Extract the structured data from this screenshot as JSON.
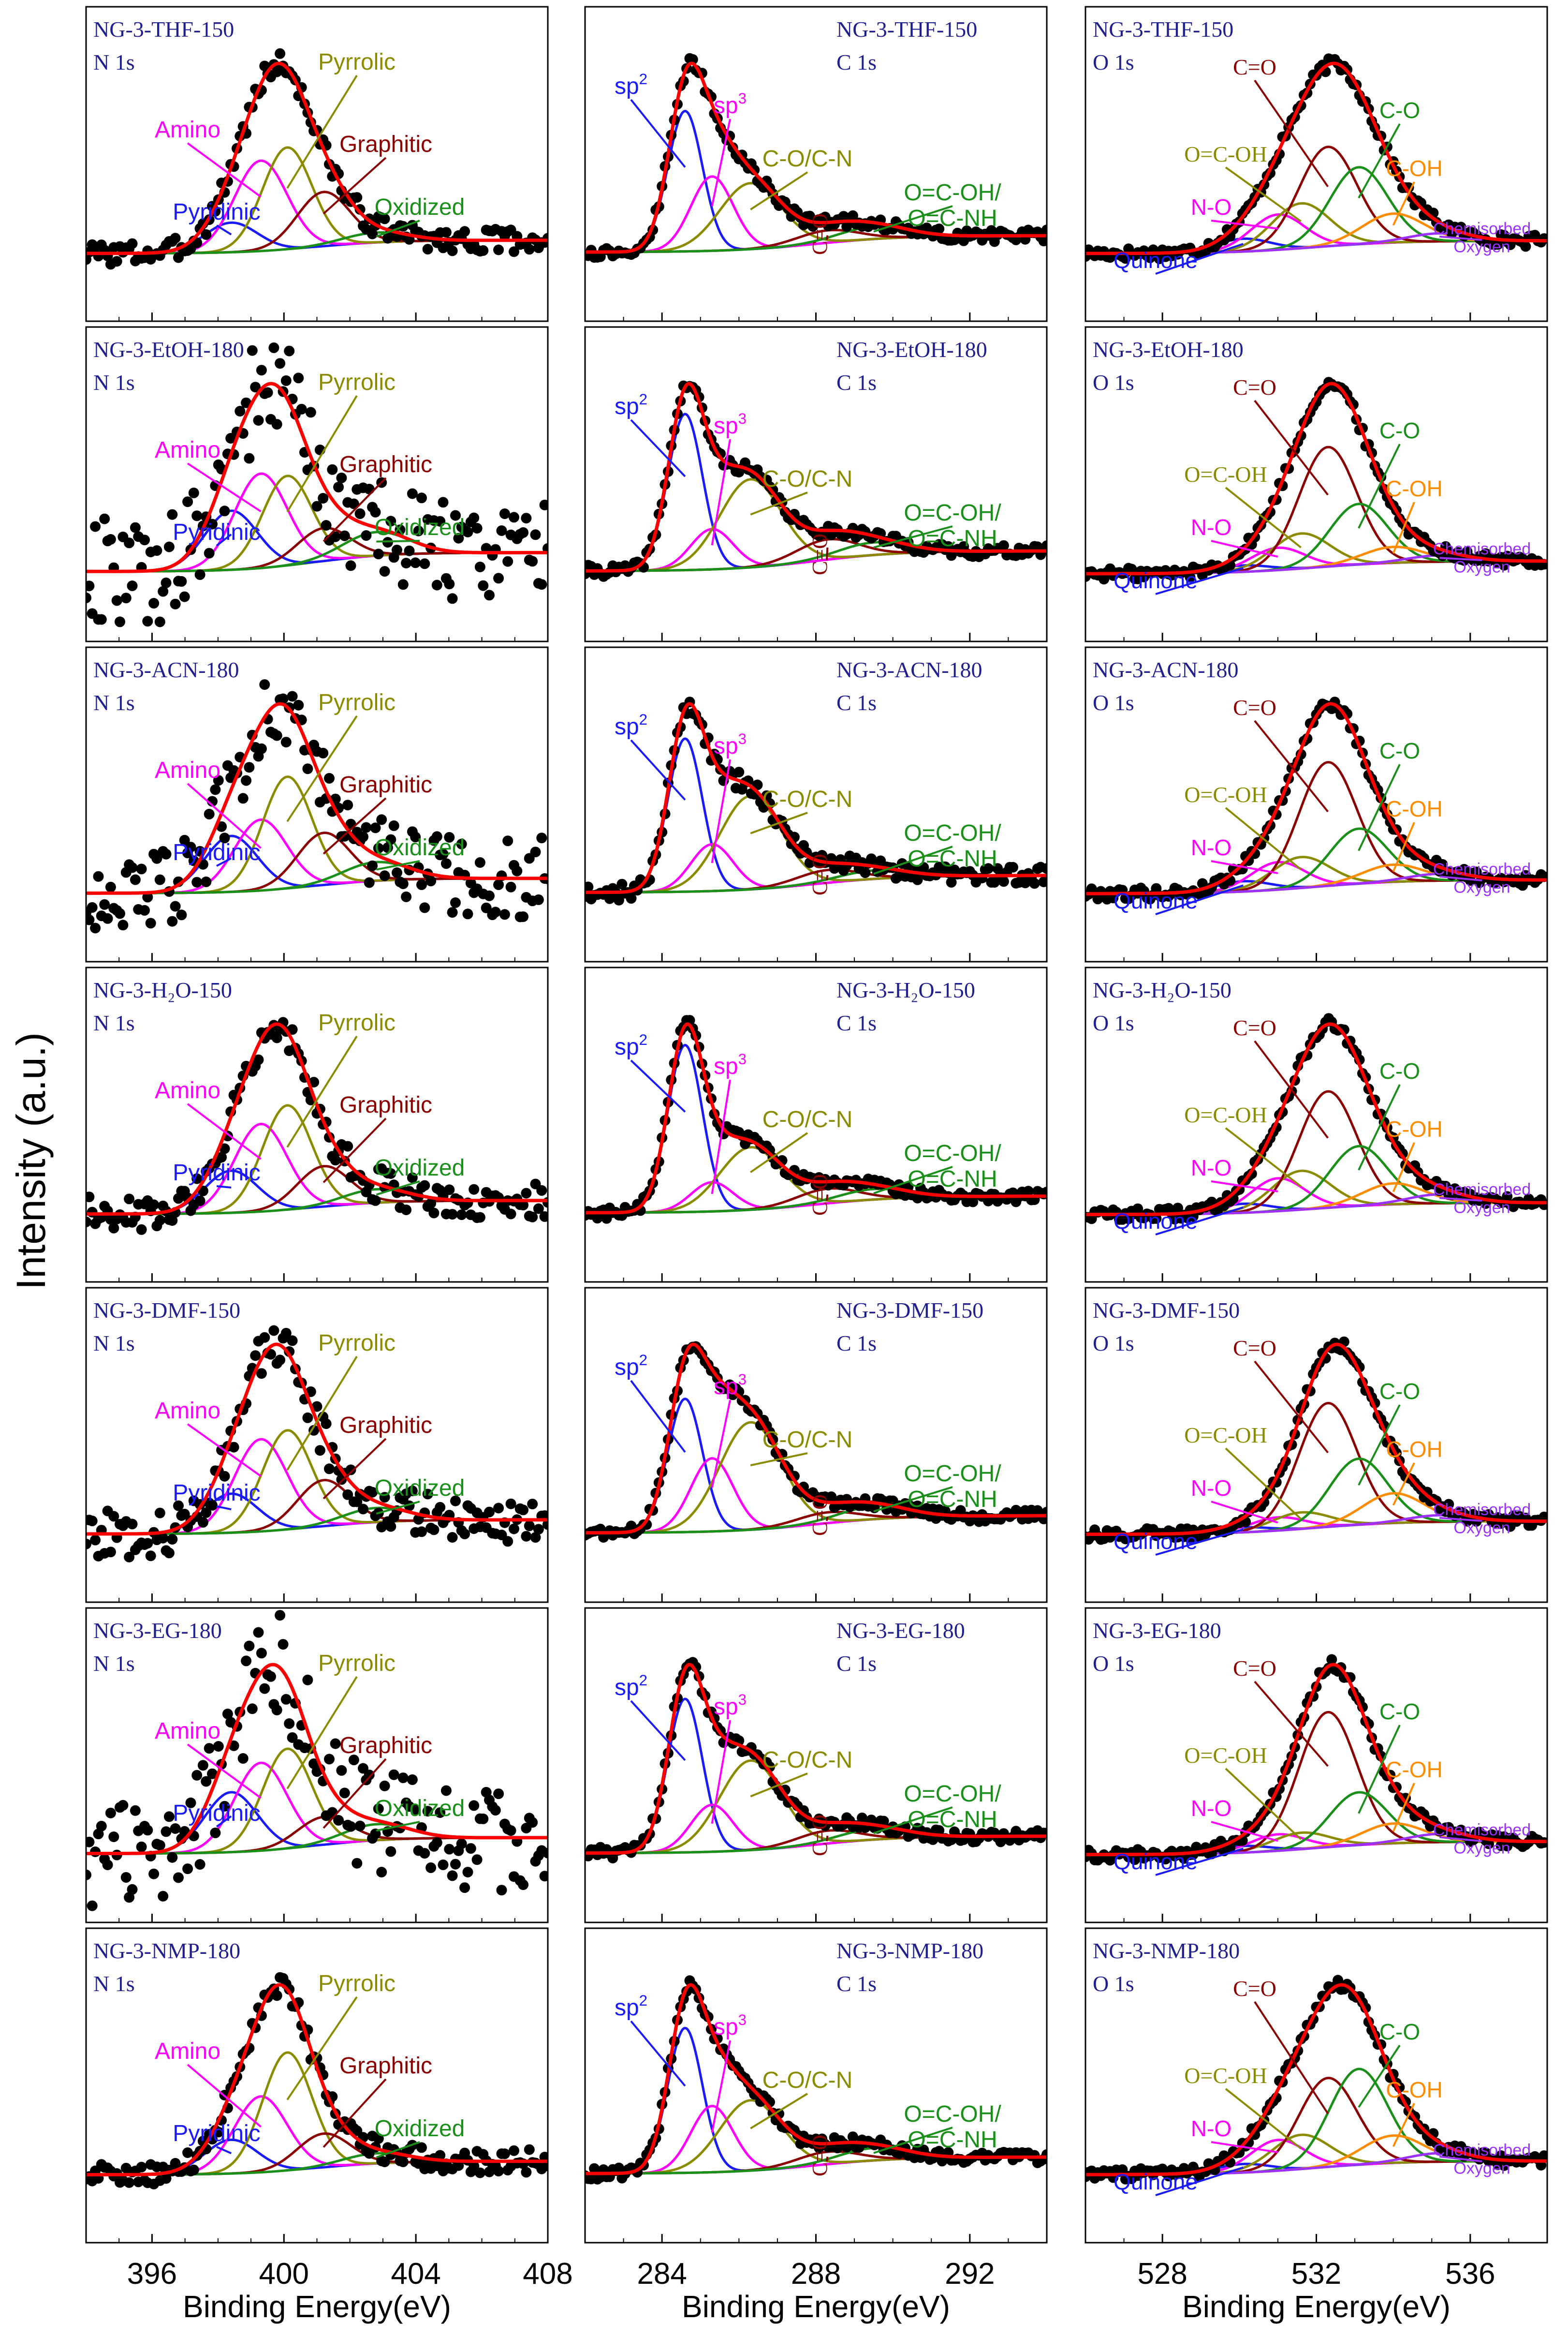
{
  "figure": {
    "ylabel": "Intensity (a.u.)",
    "xlabel": "Binding Energy(eV)"
  },
  "columns": [
    {
      "key": "N",
      "xrange": [
        394,
        408
      ],
      "ticks": [
        396,
        400,
        404,
        408
      ],
      "components": [
        {
          "name": "Pyridinic",
          "center": 398.4,
          "width": 0.8,
          "color": "#1a1aff",
          "label": "Pyridinic"
        },
        {
          "name": "Amino",
          "center": 399.3,
          "width": 0.8,
          "color": "#ff00ff",
          "label": "Amino"
        },
        {
          "name": "Pyrrolic",
          "center": 400.1,
          "width": 0.75,
          "color": "#8b8b00",
          "label": "Pyrrolic"
        },
        {
          "name": "Graphitic",
          "center": 401.2,
          "width": 0.8,
          "color": "#8b0000",
          "label": "Graphitic"
        },
        {
          "name": "Oxidized",
          "center": 402.8,
          "width": 1.0,
          "color": "#1a8f1a",
          "label": "Oxidized"
        }
      ]
    },
    {
      "key": "C",
      "xrange": [
        282,
        294
      ],
      "ticks": [
        284,
        288,
        292
      ],
      "components": [
        {
          "name": "sp2",
          "center": 284.6,
          "width": 0.45,
          "color": "#1a1aff",
          "label": "sp",
          "sup": "2"
        },
        {
          "name": "sp3",
          "center": 285.3,
          "width": 0.55,
          "color": "#ff00ff",
          "label": "sp",
          "sup": "3"
        },
        {
          "name": "C-O/C-N",
          "center": 286.3,
          "width": 0.8,
          "color": "#8b8b00",
          "label": "C-O/C-N"
        },
        {
          "name": "C=O",
          "center": 288.3,
          "width": 0.8,
          "color": "#8b0000",
          "label": "C=O"
        },
        {
          "name": "O=C-OH/O=C-NH",
          "center": 289.5,
          "width": 0.9,
          "color": "#1a8f1a",
          "label": "O=C-OH/",
          "label2": "O=C-NH"
        }
      ]
    },
    {
      "key": "O",
      "xrange": [
        526,
        538
      ],
      "ticks": [
        528,
        532,
        536
      ],
      "components": [
        {
          "name": "Quinone",
          "center": 530.1,
          "width": 0.7,
          "color": "#1a1aff",
          "label": "Quinone"
        },
        {
          "name": "N-O",
          "center": 531.0,
          "width": 0.7,
          "color": "#ff00ff",
          "label": "N-O"
        },
        {
          "name": "O=C-OH",
          "center": 531.6,
          "width": 0.75,
          "color": "#8b8b00",
          "label": "O=C-OH"
        },
        {
          "name": "C=O",
          "center": 532.3,
          "width": 0.75,
          "color": "#8b0000",
          "label": "C=O"
        },
        {
          "name": "C-O",
          "center": 533.1,
          "width": 0.75,
          "color": "#1a8f1a",
          "label": "C-O"
        },
        {
          "name": "C-OH",
          "center": 534.0,
          "width": 0.8,
          "color": "#ff8c00",
          "label": "C-OH"
        },
        {
          "name": "Chemisorbed Oxygen",
          "center": 535.2,
          "width": 0.8,
          "color": "#9b30ff",
          "label": "Chemisorbed",
          "label2": "Oxygen"
        }
      ]
    }
  ],
  "chart_data": [
    {
      "type": "line",
      "title": "NG-3-THF-150",
      "sample": "NG-3-THF-150",
      "xlabel": "Binding Energy(eV)",
      "ylabel": "Intensity (a.u.)",
      "spectra": [
        {
          "region": "N 1s",
          "xlim": [
            394,
            408
          ],
          "amplitudes": [
            0.18,
            0.55,
            0.62,
            0.33,
            0.06
          ],
          "noise": 0.02
        },
        {
          "region": "C 1s",
          "xlim": [
            282,
            294
          ],
          "amplitudes": [
            0.68,
            0.36,
            0.32,
            0.06,
            0.06
          ],
          "noise": 0.01
        },
        {
          "region": "O 1s",
          "xlim": [
            526,
            538
          ],
          "amplitudes": [
            0.08,
            0.22,
            0.28,
            0.62,
            0.48,
            0.18,
            0.05
          ],
          "noise": 0.01
        }
      ]
    },
    {
      "type": "line",
      "title": "NG-3-EtOH-180",
      "sample": "NG-3-EtOH-180",
      "xlabel": "Binding Energy(eV)",
      "ylabel": "Intensity (a.u.)",
      "spectra": [
        {
          "region": "N 1s",
          "xlim": [
            394,
            408
          ],
          "amplitudes": [
            0.25,
            0.4,
            0.38,
            0.14,
            0.1
          ],
          "noise": 0.09
        },
        {
          "region": "C 1s",
          "xlim": [
            282,
            294
          ],
          "amplitudes": [
            0.62,
            0.16,
            0.35,
            0.08,
            0.05
          ],
          "noise": 0.01
        },
        {
          "region": "O 1s",
          "xlim": [
            526,
            538
          ],
          "amplitudes": [
            0.04,
            0.14,
            0.22,
            0.75,
            0.38,
            0.1,
            0.04
          ],
          "noise": 0.01
        }
      ]
    },
    {
      "type": "line",
      "title": "NG-3-ACN-180",
      "sample": "NG-3-ACN-180",
      "xlabel": "Binding Energy(eV)",
      "ylabel": "Intensity (a.u.)",
      "spectra": [
        {
          "region": "N 1s",
          "xlim": [
            394,
            408
          ],
          "amplitudes": [
            0.3,
            0.38,
            0.6,
            0.28,
            0.1
          ],
          "noise": 0.07
        },
        {
          "region": "C 1s",
          "xlim": [
            282,
            294
          ],
          "amplitudes": [
            0.72,
            0.22,
            0.44,
            0.06,
            0.04
          ],
          "noise": 0.015
        },
        {
          "region": "O 1s",
          "xlim": [
            526,
            538
          ],
          "amplitudes": [
            0.06,
            0.16,
            0.18,
            0.72,
            0.32,
            0.1,
            0.04
          ],
          "noise": 0.01
        }
      ]
    },
    {
      "type": "line",
      "title": "NG-3-H2O-150",
      "sample": "NG-3-H₂O-150",
      "xlabel": "Binding Energy(eV)",
      "ylabel": "Intensity (a.u.)",
      "spectra": [
        {
          "region": "N 1s",
          "xlim": [
            394,
            408
          ],
          "amplitudes": [
            0.25,
            0.52,
            0.62,
            0.24,
            0.08
          ],
          "noise": 0.03
        },
        {
          "region": "C 1s",
          "xlim": [
            282,
            294
          ],
          "amplitudes": [
            0.8,
            0.14,
            0.3,
            0.07,
            0.05
          ],
          "noise": 0.01
        },
        {
          "region": "O 1s",
          "xlim": [
            526,
            538
          ],
          "amplitudes": [
            0.06,
            0.22,
            0.26,
            0.78,
            0.4,
            0.14,
            0.06
          ],
          "noise": 0.01
        }
      ]
    },
    {
      "type": "line",
      "title": "NG-3-DMF-150",
      "sample": "NG-3-DMF-150",
      "xlabel": "Binding Energy(eV)",
      "ylabel": "Intensity (a.u.)",
      "spectra": [
        {
          "region": "N 1s",
          "xlim": [
            394,
            408
          ],
          "amplitudes": [
            0.22,
            0.52,
            0.56,
            0.26,
            0.08
          ],
          "noise": 0.04
        },
        {
          "region": "C 1s",
          "xlim": [
            282,
            294
          ],
          "amplitudes": [
            0.62,
            0.34,
            0.5,
            0.05,
            0.06
          ],
          "noise": 0.01
        },
        {
          "region": "O 1s",
          "xlim": [
            526,
            538
          ],
          "amplitudes": [
            0.03,
            0.08,
            0.1,
            0.75,
            0.4,
            0.18,
            0.04
          ],
          "noise": 0.01
        }
      ]
    },
    {
      "type": "line",
      "title": "NG-3-EG-180",
      "sample": "NG-3-EG-180",
      "xlabel": "Binding Energy(eV)",
      "ylabel": "Intensity (a.u.)",
      "spectra": [
        {
          "region": "N 1s",
          "xlim": [
            394,
            408
          ],
          "amplitudes": [
            0.3,
            0.44,
            0.5,
            0.14,
            0.08
          ],
          "noise": 0.09
        },
        {
          "region": "C 1s",
          "xlim": [
            282,
            294
          ],
          "amplitudes": [
            0.72,
            0.22,
            0.42,
            0.06,
            0.05
          ],
          "noise": 0.01
        },
        {
          "region": "O 1s",
          "xlim": [
            526,
            538
          ],
          "amplitudes": [
            0.04,
            0.1,
            0.1,
            0.82,
            0.32,
            0.12,
            0.05
          ],
          "noise": 0.01
        }
      ]
    },
    {
      "type": "line",
      "title": "NG-3-NMP-180",
      "sample": "NG-3-NMP-180",
      "xlabel": "Binding Energy(eV)",
      "ylabel": "Intensity (a.u.)",
      "spectra": [
        {
          "region": "N 1s",
          "xlim": [
            394,
            408
          ],
          "amplitudes": [
            0.2,
            0.45,
            0.7,
            0.2,
            0.06
          ],
          "noise": 0.02
        },
        {
          "region": "C 1s",
          "xlim": [
            282,
            294
          ],
          "amplitudes": [
            0.7,
            0.32,
            0.34,
            0.06,
            0.06
          ],
          "noise": 0.01
        },
        {
          "region": "O 1s",
          "xlim": [
            526,
            538
          ],
          "amplitudes": [
            0.05,
            0.18,
            0.2,
            0.52,
            0.56,
            0.16,
            0.05
          ],
          "noise": 0.01
        }
      ]
    }
  ]
}
